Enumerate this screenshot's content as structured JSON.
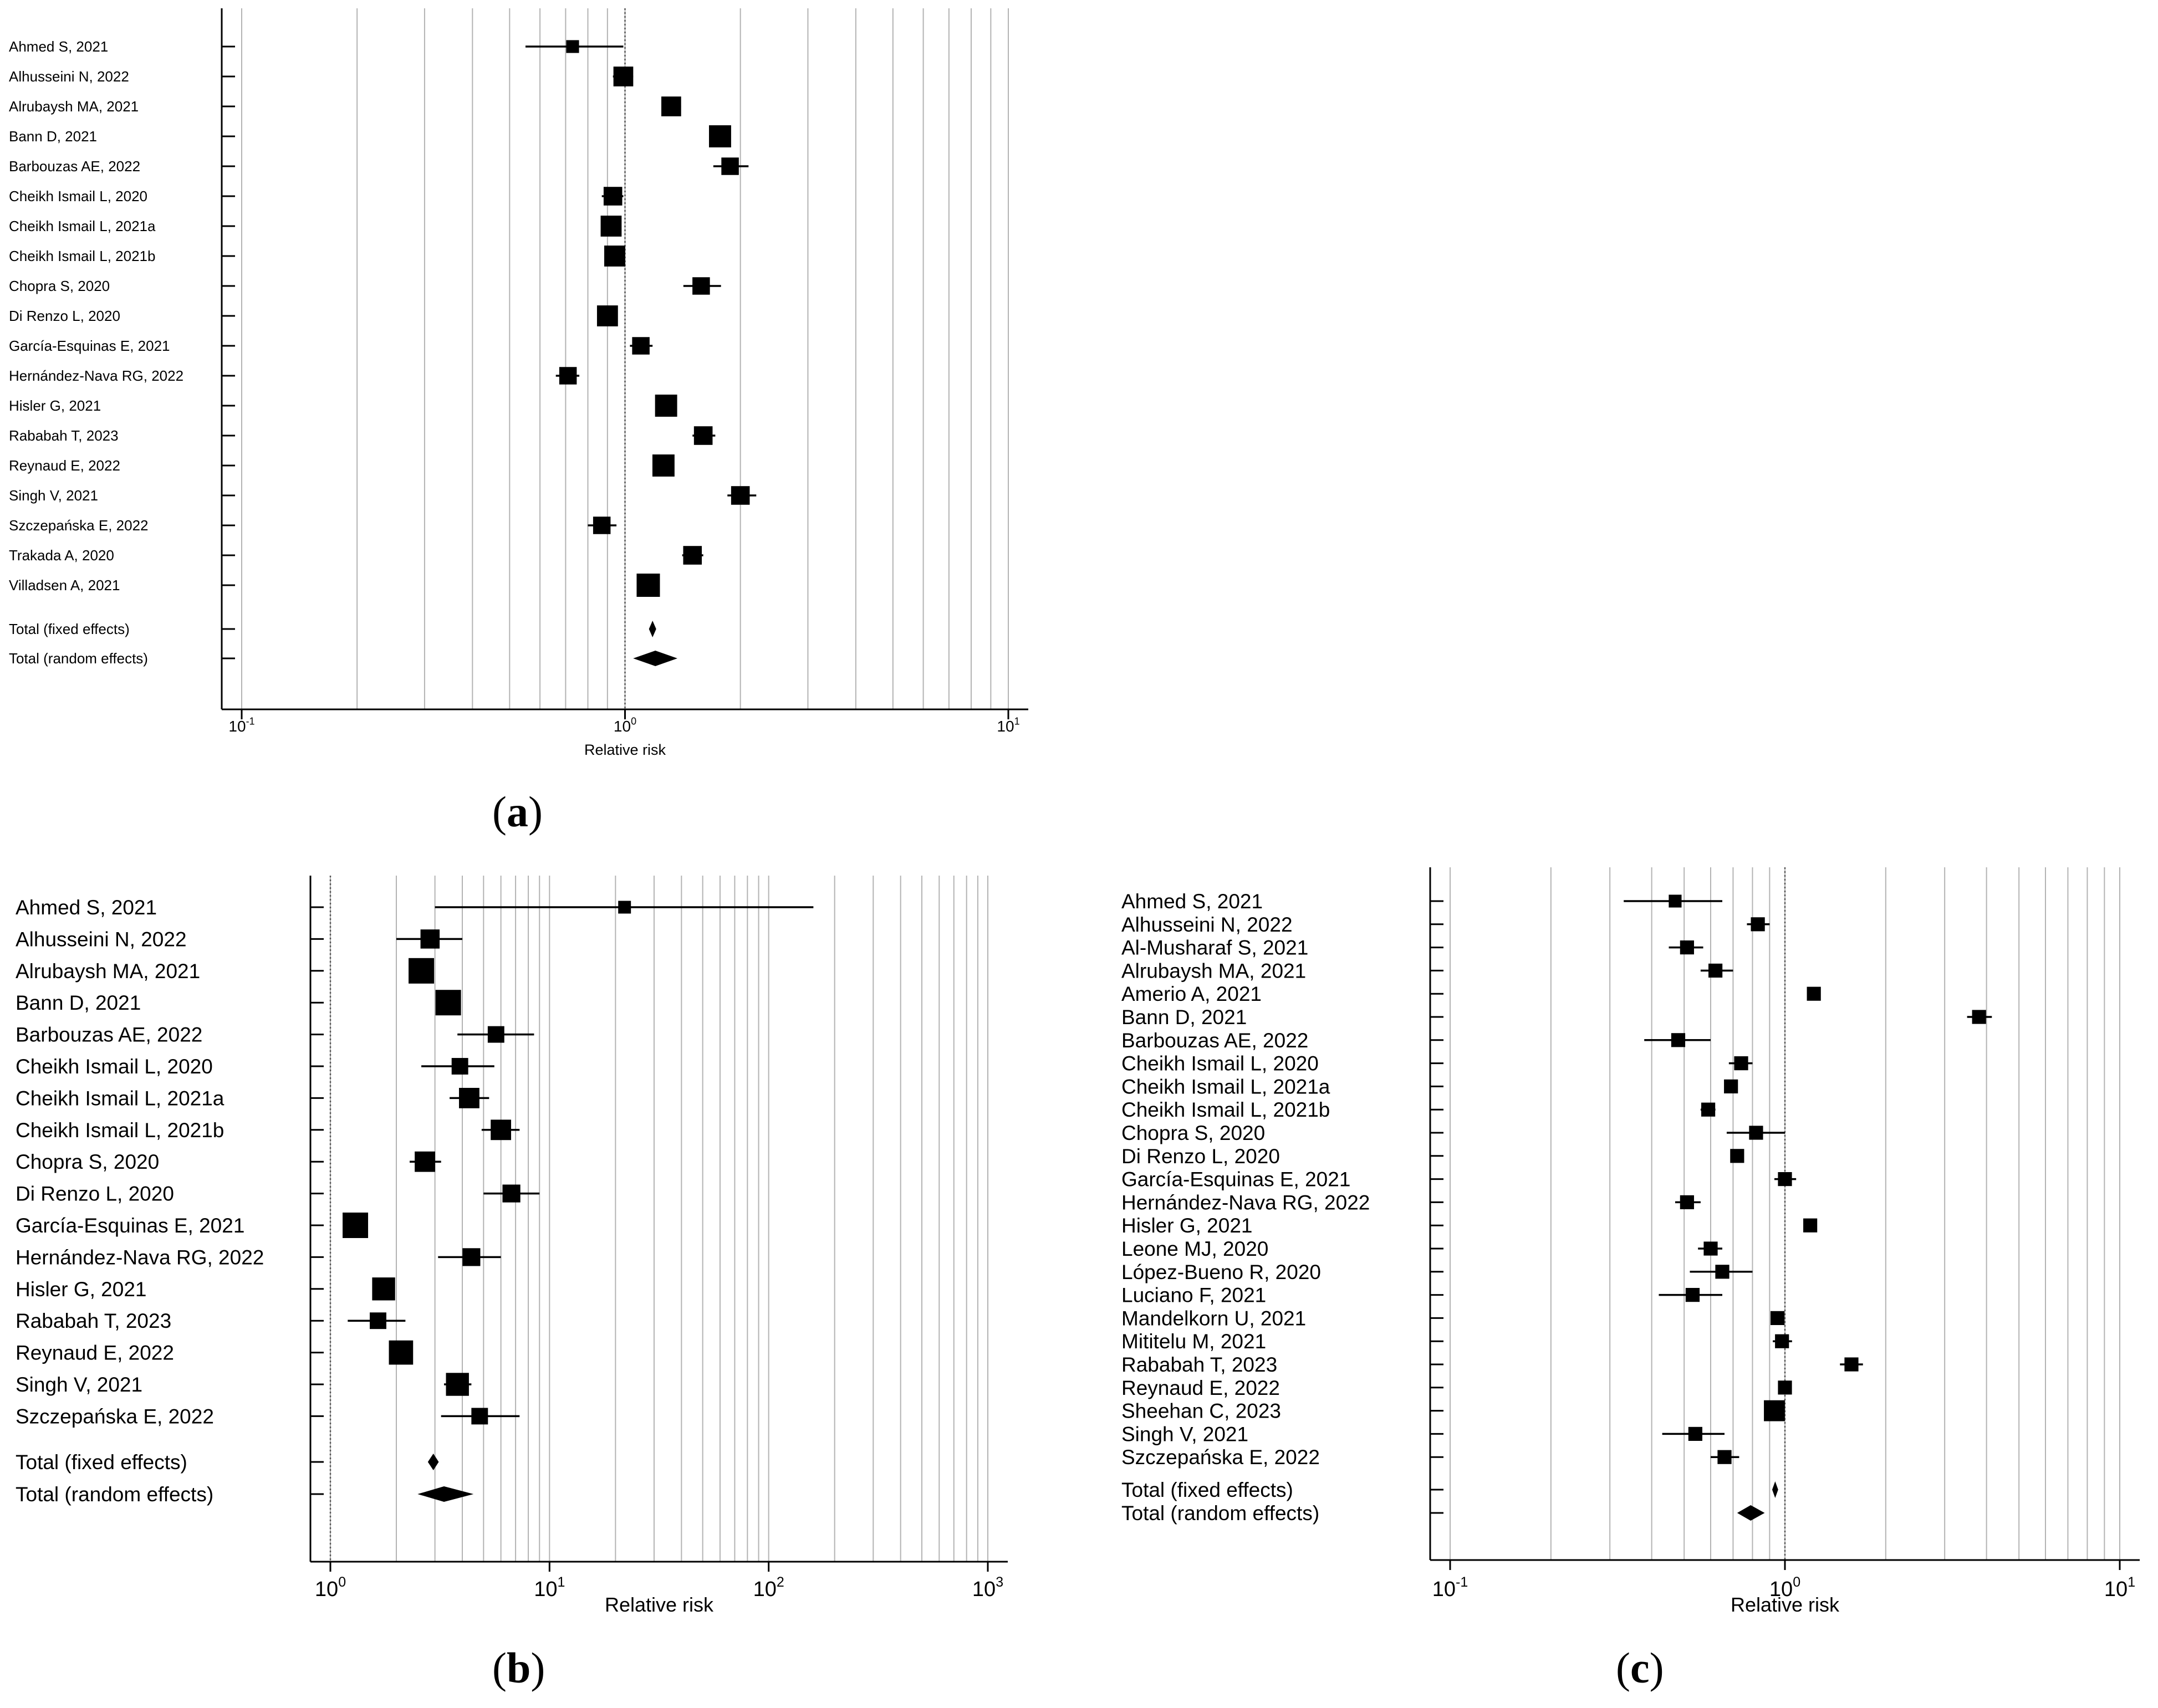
{
  "x_label": "Relative risk",
  "fixed_label": "Total (fixed effects)",
  "random_label": "Total (random effects)",
  "panel_labels": {
    "a": "a",
    "b": "b",
    "c": "c"
  },
  "colors": {
    "grid": "#b3b3b3",
    "marks": "#000000",
    "ref_line": "#555555"
  },
  "chart_data": [
    {
      "id": "a",
      "type": "forest",
      "xlabel": "Relative risk",
      "xscale": "log",
      "xlim": [
        0.1,
        10
      ],
      "ticks": [
        {
          "value": 0.1,
          "base": "10",
          "exp": "-1"
        },
        {
          "value": 1,
          "base": "10",
          "exp": "0"
        },
        {
          "value": 10,
          "base": "10",
          "exp": "1"
        }
      ],
      "reference": 1,
      "studies": [
        {
          "name": "Ahmed S, 2021",
          "rr": 0.73,
          "lo": 0.55,
          "hi": 0.99,
          "weight": 0.55
        },
        {
          "name": "Alhusseini N, 2022",
          "rr": 0.99,
          "lo": 0.93,
          "hi": 1.05,
          "weight": 0.85
        },
        {
          "name": "Alrubaysh MA, 2021",
          "rr": 1.32,
          "lo": 1.25,
          "hi": 1.4,
          "weight": 0.85
        },
        {
          "name": "Bann D, 2021",
          "rr": 1.77,
          "lo": 1.72,
          "hi": 1.83,
          "weight": 0.95
        },
        {
          "name": "Barbouzas AE, 2022",
          "rr": 1.88,
          "lo": 1.7,
          "hi": 2.1,
          "weight": 0.75
        },
        {
          "name": "Cheikh Ismail L, 2020",
          "rr": 0.93,
          "lo": 0.87,
          "hi": 0.99,
          "weight": 0.8
        },
        {
          "name": "Cheikh Ismail L, 2021a",
          "rr": 0.92,
          "lo": 0.88,
          "hi": 0.97,
          "weight": 0.9
        },
        {
          "name": "Cheikh Ismail L, 2021b",
          "rr": 0.94,
          "lo": 0.9,
          "hi": 0.98,
          "weight": 0.9
        },
        {
          "name": "Chopra S, 2020",
          "rr": 1.58,
          "lo": 1.42,
          "hi": 1.78,
          "weight": 0.75
        },
        {
          "name": "Di Renzo L, 2020",
          "rr": 0.9,
          "lo": 0.86,
          "hi": 0.94,
          "weight": 0.9
        },
        {
          "name": "García-Esquinas E, 2021",
          "rr": 1.1,
          "lo": 1.03,
          "hi": 1.18,
          "weight": 0.75
        },
        {
          "name": "Hernández-Nava RG, 2022",
          "rr": 0.71,
          "lo": 0.66,
          "hi": 0.76,
          "weight": 0.75
        },
        {
          "name": "Hisler G, 2021",
          "rr": 1.28,
          "lo": 1.24,
          "hi": 1.32,
          "weight": 0.95
        },
        {
          "name": "Rababah T, 2023",
          "rr": 1.6,
          "lo": 1.5,
          "hi": 1.72,
          "weight": 0.8
        },
        {
          "name": "Reynaud E, 2022",
          "rr": 1.26,
          "lo": 1.22,
          "hi": 1.3,
          "weight": 0.95
        },
        {
          "name": "Singh V, 2021",
          "rr": 2.0,
          "lo": 1.85,
          "hi": 2.2,
          "weight": 0.8
        },
        {
          "name": "Szczepańska E, 2022",
          "rr": 0.87,
          "lo": 0.8,
          "hi": 0.95,
          "weight": 0.75
        },
        {
          "name": "Trakada A, 2020",
          "rr": 1.5,
          "lo": 1.41,
          "hi": 1.6,
          "weight": 0.8
        },
        {
          "name": "Villadsen A, 2021",
          "rr": 1.15,
          "lo": 1.12,
          "hi": 1.18,
          "weight": 1.0
        }
      ],
      "fixed": {
        "rr": 1.18,
        "lo": 1.17,
        "hi": 1.19
      },
      "random": {
        "rr": 1.2,
        "lo": 1.05,
        "hi": 1.37
      }
    },
    {
      "id": "b",
      "type": "forest",
      "xlabel": "Relative risk",
      "xscale": "log",
      "xlim": [
        1,
        1000
      ],
      "ticks": [
        {
          "value": 1,
          "base": "10",
          "exp": "0"
        },
        {
          "value": 10,
          "base": "10",
          "exp": "1"
        },
        {
          "value": 100,
          "base": "10",
          "exp": "2"
        },
        {
          "value": 1000,
          "base": "10",
          "exp": "3"
        }
      ],
      "reference": 1,
      "studies": [
        {
          "name": "Ahmed S, 2021",
          "rr": 22,
          "lo": 3,
          "hi": 160,
          "weight": 0.5
        },
        {
          "name": "Alhusseini N, 2022",
          "rr": 2.85,
          "lo": 2.0,
          "hi": 4.0,
          "weight": 0.75
        },
        {
          "name": "Alrubaysh MA, 2021",
          "rr": 2.6,
          "lo": 2.3,
          "hi": 2.9,
          "weight": 1.0
        },
        {
          "name": "Bann D, 2021",
          "rr": 3.45,
          "lo": 3.2,
          "hi": 3.7,
          "weight": 1.0
        },
        {
          "name": "Barbouzas AE, 2022",
          "rr": 5.7,
          "lo": 3.8,
          "hi": 8.5,
          "weight": 0.65
        },
        {
          "name": "Cheikh Ismail L, 2020",
          "rr": 3.9,
          "lo": 2.6,
          "hi": 5.6,
          "weight": 0.65
        },
        {
          "name": "Cheikh Ismail L, 2021a",
          "rr": 4.3,
          "lo": 3.5,
          "hi": 5.3,
          "weight": 0.8
        },
        {
          "name": "Cheikh Ismail L, 2021b",
          "rr": 6.0,
          "lo": 4.9,
          "hi": 7.3,
          "weight": 0.8
        },
        {
          "name": "Chopra S, 2020",
          "rr": 2.7,
          "lo": 2.3,
          "hi": 3.2,
          "weight": 0.8
        },
        {
          "name": "Di Renzo L, 2020",
          "rr": 6.7,
          "lo": 5.0,
          "hi": 9.0,
          "weight": 0.7
        },
        {
          "name": "García-Esquinas E, 2021",
          "rr": 1.3,
          "lo": 1.18,
          "hi": 1.42,
          "weight": 1.0
        },
        {
          "name": "Hernández-Nava RG, 2022",
          "rr": 4.4,
          "lo": 3.1,
          "hi": 6.0,
          "weight": 0.7
        },
        {
          "name": "Hisler G, 2021",
          "rr": 1.75,
          "lo": 1.6,
          "hi": 1.95,
          "weight": 0.9
        },
        {
          "name": "Rababah T, 2023",
          "rr": 1.65,
          "lo": 1.2,
          "hi": 2.2,
          "weight": 0.65
        },
        {
          "name": "Reynaud E, 2022",
          "rr": 2.1,
          "lo": 1.9,
          "hi": 2.3,
          "weight": 0.95
        },
        {
          "name": "Singh V, 2021",
          "rr": 3.8,
          "lo": 3.3,
          "hi": 4.4,
          "weight": 0.9
        },
        {
          "name": "Szczepańska E, 2022",
          "rr": 4.8,
          "lo": 3.2,
          "hi": 7.3,
          "weight": 0.65
        }
      ],
      "fixed": {
        "rr": 2.95,
        "lo": 2.85,
        "hi": 3.05
      },
      "random": {
        "rr": 3.3,
        "lo": 2.5,
        "hi": 4.5
      }
    },
    {
      "id": "c",
      "type": "forest",
      "xlabel": "Relative risk",
      "xscale": "log",
      "xlim": [
        0.1,
        10
      ],
      "ticks": [
        {
          "value": 0.1,
          "base": "10",
          "exp": "-1"
        },
        {
          "value": 1,
          "base": "10",
          "exp": "0"
        },
        {
          "value": 10,
          "base": "10",
          "exp": "1"
        }
      ],
      "reference": 1,
      "studies": [
        {
          "name": "Ahmed S, 2021",
          "rr": 0.47,
          "lo": 0.33,
          "hi": 0.65,
          "weight": 0.55
        },
        {
          "name": "Alhusseini N,  2022",
          "rr": 0.83,
          "lo": 0.77,
          "hi": 0.9,
          "weight": 0.6
        },
        {
          "name": "Al-Musharaf S, 2021",
          "rr": 0.51,
          "lo": 0.45,
          "hi": 0.57,
          "weight": 0.6
        },
        {
          "name": "Alrubaysh MA, 2021",
          "rr": 0.62,
          "lo": 0.56,
          "hi": 0.7,
          "weight": 0.6
        },
        {
          "name": "Amerio A, 2021",
          "rr": 1.22,
          "lo": 1.19,
          "hi": 1.25,
          "weight": 0.6
        },
        {
          "name": "Bann D, 2021",
          "rr": 3.8,
          "lo": 3.5,
          "hi": 4.15,
          "weight": 0.6
        },
        {
          "name": "Barbouzas AE, 2022",
          "rr": 0.48,
          "lo": 0.38,
          "hi": 0.6,
          "weight": 0.6
        },
        {
          "name": "Cheikh Ismail L, 2020",
          "rr": 0.74,
          "lo": 0.68,
          "hi": 0.8,
          "weight": 0.6
        },
        {
          "name": "Cheikh Ismail L, 2021a",
          "rr": 0.69,
          "lo": 0.66,
          "hi": 0.72,
          "weight": 0.6
        },
        {
          "name": "Cheikh Ismail L, 2021b",
          "rr": 0.59,
          "lo": 0.56,
          "hi": 0.62,
          "weight": 0.6
        },
        {
          "name": "Chopra S, 2020",
          "rr": 0.82,
          "lo": 0.67,
          "hi": 1.0,
          "weight": 0.6
        },
        {
          "name": "Di Renzo L, 2020",
          "rr": 0.72,
          "lo": 0.7,
          "hi": 0.74,
          "weight": 0.6
        },
        {
          "name": "García-Esquinas E, 2021",
          "rr": 1.0,
          "lo": 0.93,
          "hi": 1.08,
          "weight": 0.6
        },
        {
          "name": "Hernández-Nava RG,  2022",
          "rr": 0.51,
          "lo": 0.47,
          "hi": 0.56,
          "weight": 0.6
        },
        {
          "name": "Hisler G, 2021",
          "rr": 1.19,
          "lo": 1.17,
          "hi": 1.21,
          "weight": 0.6
        },
        {
          "name": "Leone MJ, 2020",
          "rr": 0.6,
          "lo": 0.55,
          "hi": 0.65,
          "weight": 0.6
        },
        {
          "name": "López-Bueno R, 2020",
          "rr": 0.65,
          "lo": 0.52,
          "hi": 0.8,
          "weight": 0.6
        },
        {
          "name": "Luciano F, 2021",
          "rr": 0.53,
          "lo": 0.42,
          "hi": 0.65,
          "weight": 0.6
        },
        {
          "name": "Mandelkorn U, 2021",
          "rr": 0.95,
          "lo": 0.92,
          "hi": 0.98,
          "weight": 0.6
        },
        {
          "name": "Mititelu M, 2021",
          "rr": 0.98,
          "lo": 0.92,
          "hi": 1.05,
          "weight": 0.6
        },
        {
          "name": "Rababah T, 2023",
          "rr": 1.58,
          "lo": 1.46,
          "hi": 1.71,
          "weight": 0.6
        },
        {
          "name": "Reynaud E, 2022",
          "rr": 1.0,
          "lo": 0.96,
          "hi": 1.04,
          "weight": 0.6
        },
        {
          "name": "Sheehan C, 2023",
          "rr": 0.93,
          "lo": 0.91,
          "hi": 0.95,
          "weight": 0.9
        },
        {
          "name": "Singh V, 2021",
          "rr": 0.54,
          "lo": 0.43,
          "hi": 0.66,
          "weight": 0.6
        },
        {
          "name": "Szczepańska E, 2022",
          "rr": 0.66,
          "lo": 0.6,
          "hi": 0.73,
          "weight": 0.6
        }
      ],
      "fixed": {
        "rr": 0.935,
        "lo": 0.93,
        "hi": 0.94
      },
      "random": {
        "rr": 0.79,
        "lo": 0.72,
        "hi": 0.87
      }
    }
  ]
}
